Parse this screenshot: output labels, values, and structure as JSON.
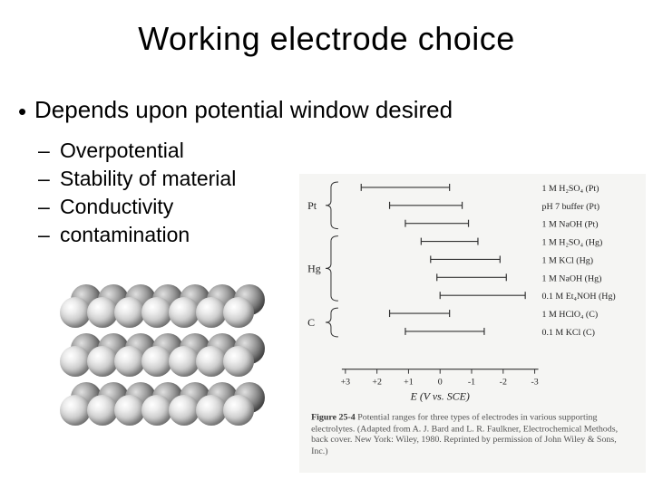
{
  "title": "Working electrode choice",
  "bullet": "Depends upon potential window desired",
  "subitems": [
    "Overpotential",
    "Stability of material",
    "Conductivity",
    "contamination"
  ],
  "figure": {
    "electrodes": [
      "Pt",
      "Hg",
      "C"
    ],
    "ranges": [
      {
        "group": 0,
        "label": "1 M H₂SO₄ (Pt)",
        "x0": 2.5,
        "x1": -0.3
      },
      {
        "group": 0,
        "label": "pH 7 buffer (Pt)",
        "x0": 1.6,
        "x1": -0.7
      },
      {
        "group": 0,
        "label": "1 M NaOH (Pt)",
        "x0": 1.1,
        "x1": -0.9
      },
      {
        "group": 1,
        "label": "1 M H₂SO₄ (Hg)",
        "x0": 0.6,
        "x1": -1.2
      },
      {
        "group": 1,
        "label": "1 M KCl (Hg)",
        "x0": 0.3,
        "x1": -1.9
      },
      {
        "group": 1,
        "label": "1 M NaOH (Hg)",
        "x0": 0.1,
        "x1": -2.1
      },
      {
        "group": 1,
        "label": "0.1 M Et₄NOH (Hg)",
        "x0": 0.0,
        "x1": -2.7
      },
      {
        "group": 2,
        "label": "1 M HClO₄ (C)",
        "x0": 1.6,
        "x1": -0.3
      },
      {
        "group": 2,
        "label": "0.1 M KCl (C)",
        "x0": 1.1,
        "x1": -1.4
      }
    ],
    "axis": {
      "label": "E (V vs. SCE)",
      "min": -3,
      "max": 3,
      "ticks": [
        3,
        2,
        1,
        0,
        -1,
        -2,
        -3
      ]
    },
    "caption_bold": "Figure 25-4",
    "caption_rest": " Potential ranges for three types of electrodes in various supporting electrolytes. (Adapted from A. J. Bard and L. R. Faulkner, Electrochemical Methods, back cover. New York: Wiley, 1980. Reprinted by permission of John Wiley & Sons, Inc.)",
    "bg_color": "#f5f5f3",
    "line_color": "#333333"
  },
  "atoms": {
    "rows": 3,
    "cols": 7,
    "colors": [
      "#cfcfcf",
      "#7a7a7a"
    ]
  }
}
